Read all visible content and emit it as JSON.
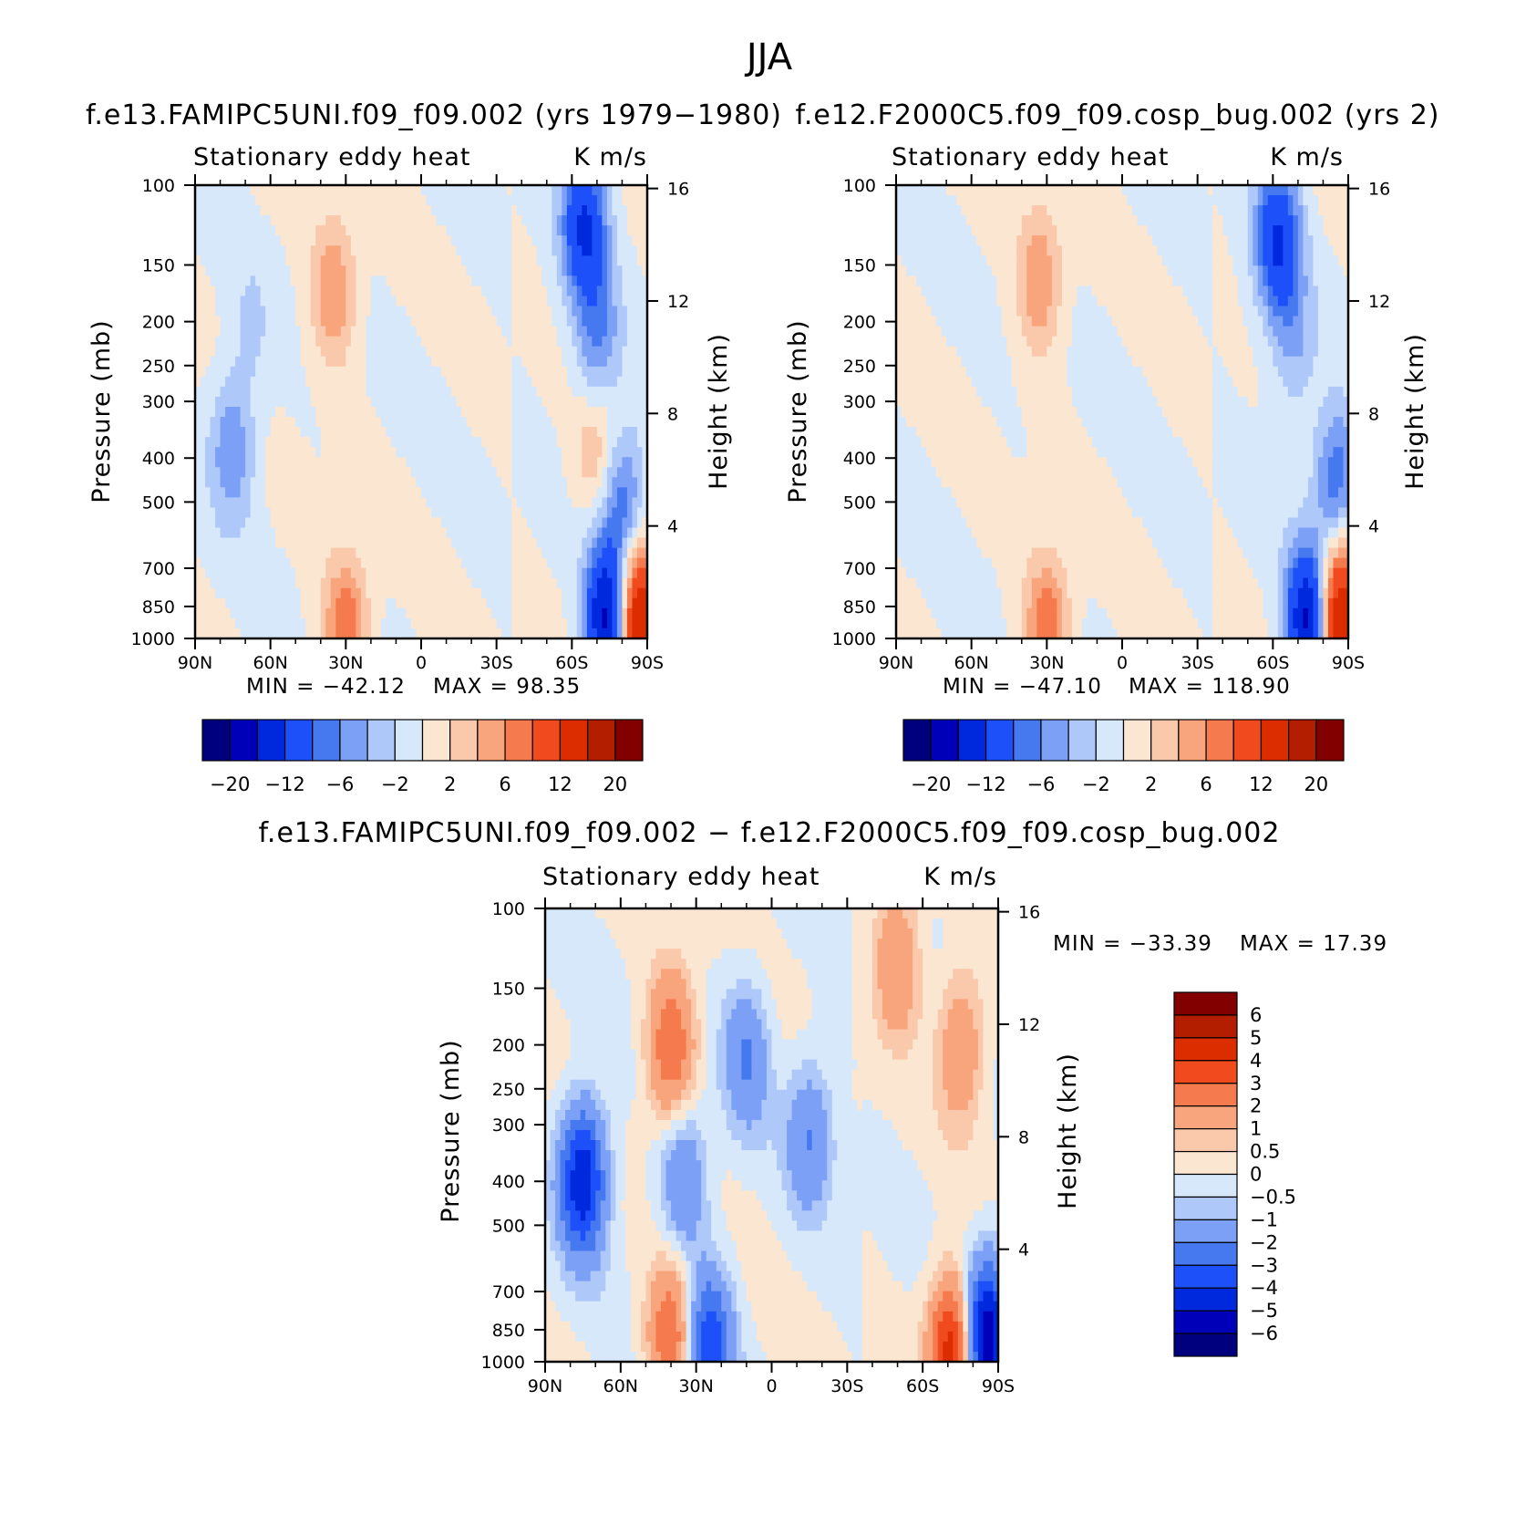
{
  "title": "JJA",
  "chart_data": [
    {
      "type": "heatmap",
      "title": "f.e13.FAMIPC5UNI.f09_f09.002 (yrs 1979−1980)",
      "left_label": "Stationary eddy heat",
      "right_label": "K m/s",
      "xlabel": "",
      "ylabel": "Pressure (mb)",
      "y2label": "Height (km)",
      "x_ticks": [
        "90N",
        "60N",
        "30N",
        "0",
        "30S",
        "60S",
        "90S"
      ],
      "y_ticks": [
        1000,
        850,
        700,
        500,
        400,
        300,
        250,
        200,
        150,
        100
      ],
      "y2_ticks": [
        4,
        8,
        12,
        16
      ],
      "min_text": "MIN = −42.12",
      "max_text": "MAX =  98.35",
      "min": -42.12,
      "max": 98.35,
      "levels": [
        -20,
        -16,
        -12,
        -8,
        -6,
        -4,
        -2,
        0,
        2,
        4,
        6,
        8,
        12,
        16,
        20
      ],
      "colorbar_labels": [
        "−20",
        "−12",
        "−6",
        "−2",
        "2",
        "6",
        "12",
        "20"
      ],
      "colorbar_orientation": "horizontal",
      "features": [
        {
          "lat": 35,
          "p": 170,
          "value": 6
        },
        {
          "lat": 75,
          "p": 380,
          "value": -6
        },
        {
          "lat": 68,
          "p": 210,
          "value": -2
        },
        {
          "lat": -65,
          "p": 120,
          "value": -12
        },
        {
          "lat": -70,
          "p": 220,
          "value": -6
        },
        {
          "lat": -70,
          "p": 400,
          "value": 4
        },
        {
          "lat": -80,
          "p": 500,
          "value": -8
        },
        {
          "lat": 30,
          "p": 970,
          "value": 8
        },
        {
          "lat": -75,
          "p": 940,
          "value": -20
        },
        {
          "lat": -85,
          "p": 930,
          "value": 20
        }
      ]
    },
    {
      "type": "heatmap",
      "title": "f.e12.F2000C5.f09_f09.cosp_bug.002 (yrs 2)",
      "left_label": "Stationary eddy heat",
      "right_label": "K m/s",
      "xlabel": "",
      "ylabel": "Pressure (mb)",
      "y2label": "Height (km)",
      "x_ticks": [
        "90N",
        "60N",
        "30N",
        "0",
        "30S",
        "60S",
        "90S"
      ],
      "y_ticks": [
        1000,
        850,
        700,
        500,
        400,
        300,
        250,
        200,
        150,
        100
      ],
      "y2_ticks": [
        4,
        8,
        12,
        16
      ],
      "min_text": "MIN = −47.10",
      "max_text": "MAX = 118.90",
      "min": -47.1,
      "max": 118.9,
      "levels": [
        -20,
        -16,
        -12,
        -8,
        -6,
        -4,
        -2,
        0,
        2,
        4,
        6,
        8,
        12,
        16,
        20
      ],
      "colorbar_labels": [
        "−20",
        "−12",
        "−6",
        "−2",
        "2",
        "6",
        "12",
        "20"
      ],
      "colorbar_orientation": "horizontal",
      "features": [
        {
          "lat": 33,
          "p": 160,
          "value": 6
        },
        {
          "lat": -62,
          "p": 130,
          "value": -12
        },
        {
          "lat": -68,
          "p": 230,
          "value": -4
        },
        {
          "lat": -85,
          "p": 450,
          "value": -8
        },
        {
          "lat": 30,
          "p": 970,
          "value": 8
        },
        {
          "lat": -75,
          "p": 940,
          "value": -20
        },
        {
          "lat": -85,
          "p": 920,
          "value": 20
        }
      ]
    },
    {
      "type": "heatmap",
      "title": "f.e13.FAMIPC5UNI.f09_f09.002 − f.e12.F2000C5.f09_f09.cosp_bug.002",
      "left_label": "Stationary eddy heat",
      "right_label": "K m/s",
      "xlabel": "",
      "ylabel": "Pressure (mb)",
      "y2label": "Height (km)",
      "x_ticks": [
        "90N",
        "60N",
        "30N",
        "0",
        "30S",
        "60S",
        "90S"
      ],
      "y_ticks": [
        1000,
        850,
        700,
        500,
        400,
        300,
        250,
        200,
        150,
        100
      ],
      "y2_ticks": [
        4,
        8,
        12,
        16
      ],
      "min_text": "MIN = −33.39",
      "max_text": "MAX =   17.39",
      "min": -33.39,
      "max": 17.39,
      "levels": [
        -6,
        -5,
        -4,
        -3,
        -2,
        -1,
        -0.5,
        0,
        0.5,
        1,
        2,
        3,
        4,
        5,
        6
      ],
      "colorbar_labels": [
        "6",
        "5",
        "4",
        "3",
        "2",
        "1",
        "0.5",
        "0",
        "−0.5",
        "−1",
        "−2",
        "−3",
        "−4",
        "−5",
        "−6"
      ],
      "colorbar_orientation": "vertical",
      "features": [
        {
          "lat": 75,
          "p": 400,
          "value": -5
        },
        {
          "lat": 40,
          "p": 200,
          "value": 3
        },
        {
          "lat": 35,
          "p": 400,
          "value": -2
        },
        {
          "lat": 10,
          "p": 210,
          "value": -2
        },
        {
          "lat": -15,
          "p": 320,
          "value": -2
        },
        {
          "lat": -50,
          "p": 130,
          "value": 2
        },
        {
          "lat": -75,
          "p": 200,
          "value": 2
        },
        {
          "lat": 40,
          "p": 900,
          "value": 3
        },
        {
          "lat": 25,
          "p": 950,
          "value": -4
        },
        {
          "lat": -85,
          "p": 900,
          "value": -6
        },
        {
          "lat": -72,
          "p": 970,
          "value": 5
        }
      ]
    }
  ],
  "colors": {
    "levels": [
      "#00007f",
      "#0000b9",
      "#0028dc",
      "#1e50fa",
      "#4678f0",
      "#7ca0f5",
      "#afc8fa",
      "#d7e8fa",
      "#fbe6d2",
      "#fac8aa",
      "#f8a47c",
      "#f57b4e",
      "#f04a1e",
      "#dc2d00",
      "#b41e00",
      "#820000"
    ]
  }
}
